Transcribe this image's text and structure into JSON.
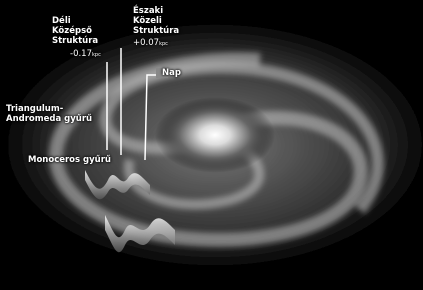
{
  "labels": {
    "south_middle": {
      "lines": [
        "Déli",
        "Középső",
        "Struktúra"
      ],
      "offset": {
        "value": "-0.17",
        "unit": "kpc"
      }
    },
    "north_near": {
      "lines": [
        "Északi",
        "Közeli",
        "Struktúra"
      ],
      "offset": {
        "value": "+0.07",
        "unit": "kpc"
      }
    },
    "sun": "Nap",
    "triangulum": [
      "Triangulum-",
      "Andromeda gyűrű"
    ],
    "monoceros": "Monoceros gyűrű"
  }
}
